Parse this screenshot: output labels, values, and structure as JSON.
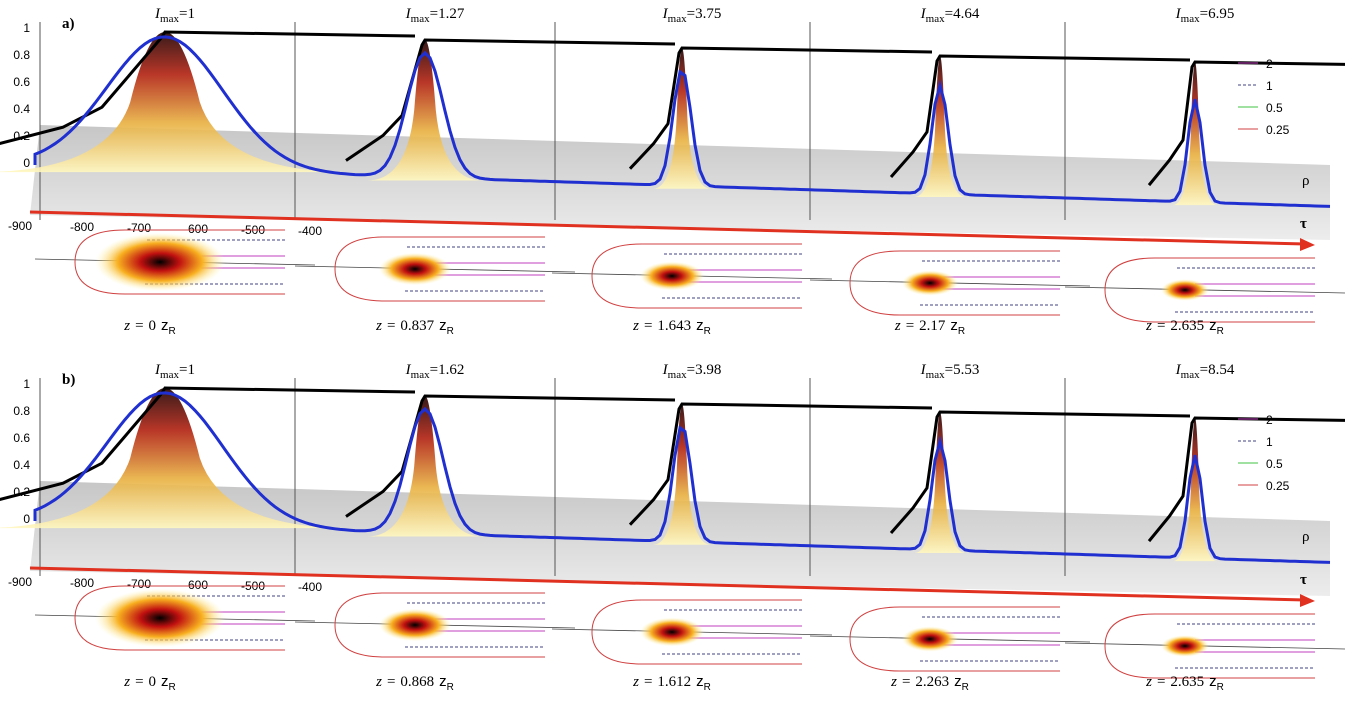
{
  "panels": [
    {
      "label": "a)",
      "imax": [
        "1",
        "1.27",
        "3.75",
        "4.64",
        "6.95"
      ],
      "z": [
        "0",
        "0.837",
        "1.643",
        "2.17",
        "2.635"
      ]
    },
    {
      "label": "b)",
      "imax": [
        "1",
        "1.62",
        "3.98",
        "5.53",
        "8.54"
      ],
      "z": [
        "0",
        "0.868",
        "1.612",
        "2.263",
        "2.635"
      ]
    }
  ],
  "imax_symbol": "I",
  "imax_sub": "max",
  "equals": "=",
  "z_symbol": "z",
  "z_unit": "z",
  "z_unit_sub": "R",
  "y_ticks": [
    "1",
    "0.8",
    "0.6",
    "0.4",
    "0.2",
    "0"
  ],
  "x_ticks": [
    "-900",
    "-800",
    "-700",
    "-600",
    "-500",
    "-400"
  ],
  "legend": [
    "2",
    "1",
    "0.5",
    "0.25"
  ],
  "rho": "ρ",
  "tau": "τ"
}
